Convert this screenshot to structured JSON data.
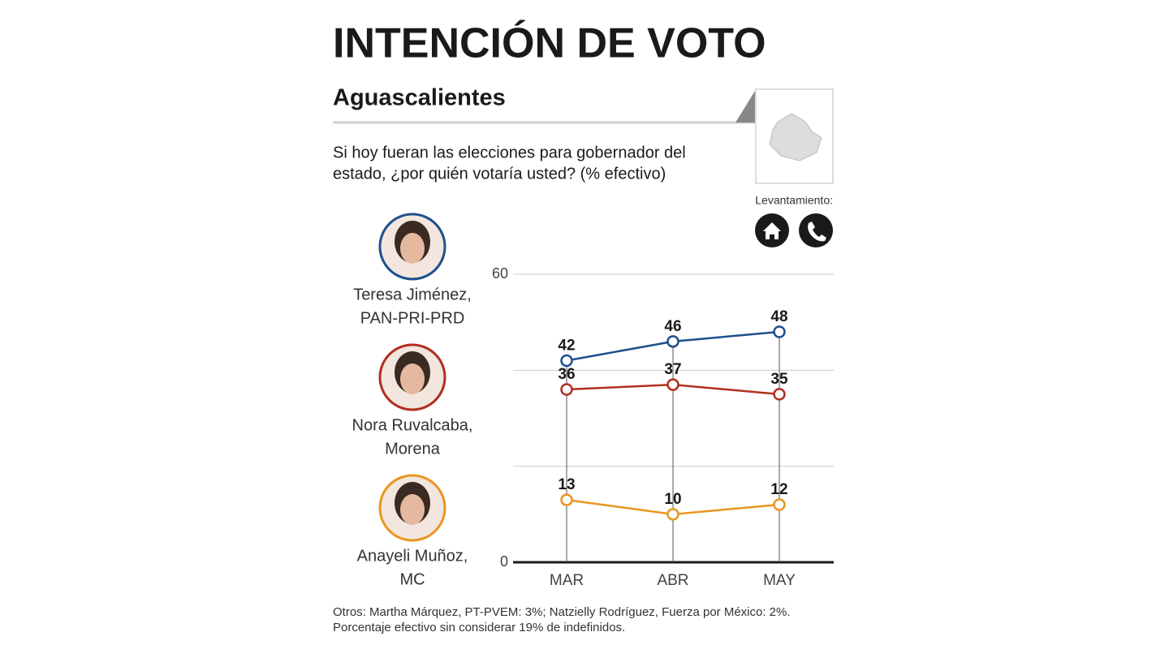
{
  "chart_data": {
    "type": "line",
    "title": "INTENCIÓN DE VOTO",
    "subtitle": "Aguascalientes",
    "question": [
      "Si hoy fueran las elecciones para gobernador del",
      "estado, ¿por quién votaría usted? (% efectivo)"
    ],
    "survey_label": "Levantamiento:",
    "categories": [
      "MAR",
      "ABR",
      "MAY"
    ],
    "series": [
      {
        "name": "Teresa Jiménez,",
        "party": "PAN-PRI-PRD",
        "color": "#1e4f8e",
        "values": [
          42,
          46,
          48
        ]
      },
      {
        "name": "Nora Ruvalcaba,",
        "party": "Morena",
        "color": "#b12f1f",
        "values": [
          36,
          37,
          35
        ]
      },
      {
        "name": "Anayeli Muñoz,",
        "party": "MC",
        "color": "#e9961f",
        "values": [
          13,
          10,
          12
        ]
      }
    ],
    "ylim": [
      0,
      60
    ],
    "yticks": [
      0,
      60
    ],
    "grid_lines": [
      20,
      40,
      60
    ],
    "notes": [
      "Otros: Martha Márquez, PT-PVEM: 3%; Natzielly Rodríguez, Fuerza por México: 2%.",
      "Porcentaje efectivo sin considerar 19% de indefinidos."
    ]
  }
}
